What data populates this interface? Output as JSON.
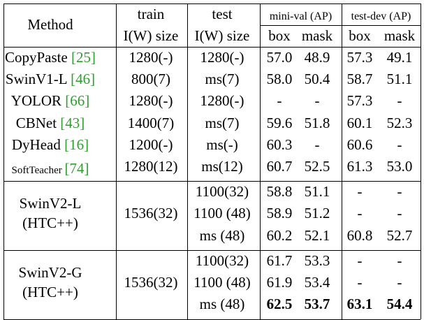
{
  "header": {
    "method": "Method",
    "train_top": "train",
    "train_bottom": "I(W) size",
    "test_top": "test",
    "test_bottom": "I(W) size",
    "minival": "mini-val (AP)",
    "testdev": "test-dev (AP)",
    "box": "box",
    "mask": "mask"
  },
  "baselines": [
    {
      "name": "CopyPaste",
      "ref": "[25]",
      "train": "1280(-)",
      "test": "1280(-)",
      "mv_box": "57.0",
      "mv_mask": "48.9",
      "td_box": "57.3",
      "td_mask": "49.1"
    },
    {
      "name": "SwinV1-L",
      "ref": "[46]",
      "train": "800(7)",
      "test": "ms(7)",
      "mv_box": "58.0",
      "mv_mask": "50.4",
      "td_box": "58.7",
      "td_mask": "51.1"
    },
    {
      "name": "YOLOR",
      "ref": "[66]",
      "train": "1280(-)",
      "test": "1280(-)",
      "mv_box": "-",
      "mv_mask": "-",
      "td_box": "57.3",
      "td_mask": "-"
    },
    {
      "name": "CBNet",
      "ref": "[43]",
      "train": "1400(7)",
      "test": "ms(7)",
      "mv_box": "59.6",
      "mv_mask": "51.8",
      "td_box": "60.1",
      "td_mask": "52.3"
    },
    {
      "name": "DyHead",
      "ref": "[16]",
      "train": "1200(-)",
      "test": "ms(-)",
      "mv_box": "60.3",
      "mv_mask": "-",
      "td_box": "60.6",
      "td_mask": "-"
    },
    {
      "name": "SoftTeacher",
      "ref": "[74]",
      "train": "1280(12)",
      "test": "ms(12)",
      "mv_box": "60.7",
      "mv_mask": "52.5",
      "td_box": "61.3",
      "td_mask": "53.0"
    }
  ],
  "groups": [
    {
      "name_line1": "SwinV2-L",
      "name_line2": "(HTC++)",
      "train": "1536(32)",
      "rows": [
        {
          "test": "1100(32)",
          "mv_box": "58.8",
          "mv_mask": "51.1",
          "td_box": "-",
          "td_mask": "-"
        },
        {
          "test": "1100 (48)",
          "mv_box": "58.9",
          "mv_mask": "51.2",
          "td_box": "-",
          "td_mask": "-"
        },
        {
          "test": "ms (48)",
          "mv_box": "60.2",
          "mv_mask": "52.1",
          "td_box": "60.8",
          "td_mask": "52.7"
        }
      ]
    },
    {
      "name_line1": "SwinV2-G",
      "name_line2": "(HTC++)",
      "train": "1536(32)",
      "rows": [
        {
          "test": "1100(32)",
          "mv_box": "61.7",
          "mv_mask": "53.3",
          "td_box": "-",
          "td_mask": "-"
        },
        {
          "test": "1100 (48)",
          "mv_box": "61.9",
          "mv_mask": "53.4",
          "td_box": "-",
          "td_mask": "-"
        },
        {
          "test": "ms (48)",
          "mv_box": "62.5",
          "mv_mask": "53.7",
          "td_box": "63.1",
          "td_mask": "54.4"
        }
      ]
    }
  ]
}
